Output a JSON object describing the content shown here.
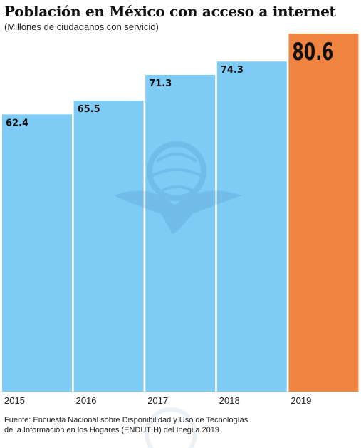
{
  "header": {
    "title": "Población en México con acceso a internet",
    "subtitle": "(Millones de ciudadanos con servicio)"
  },
  "footer": {
    "source_line1": "Fuente: Encuesta Nacional sobre Disponibilidad y Uso de Tecnologías",
    "source_line2": "de la Información en los Hogares (ENDUTIH) del Inegi a 2019"
  },
  "watermark": {
    "icon": "eagle-globe-seal-icon"
  },
  "colors": {
    "bar": "#7ecbf5",
    "highlight": "#f08542",
    "label": "#111111"
  },
  "chart_data": {
    "type": "bar",
    "title": "Población en México con acceso a internet",
    "subtitle": "(Millones de ciudadanos con servicio)",
    "xlabel": "",
    "ylabel": "",
    "categories": [
      "2015",
      "2016",
      "2017",
      "2018",
      "2019"
    ],
    "values": [
      62.4,
      65.5,
      71.3,
      74.3,
      80.6
    ],
    "highlight_index": 4,
    "ylim": [
      0,
      80.6
    ],
    "grid": false,
    "legend": "none"
  }
}
